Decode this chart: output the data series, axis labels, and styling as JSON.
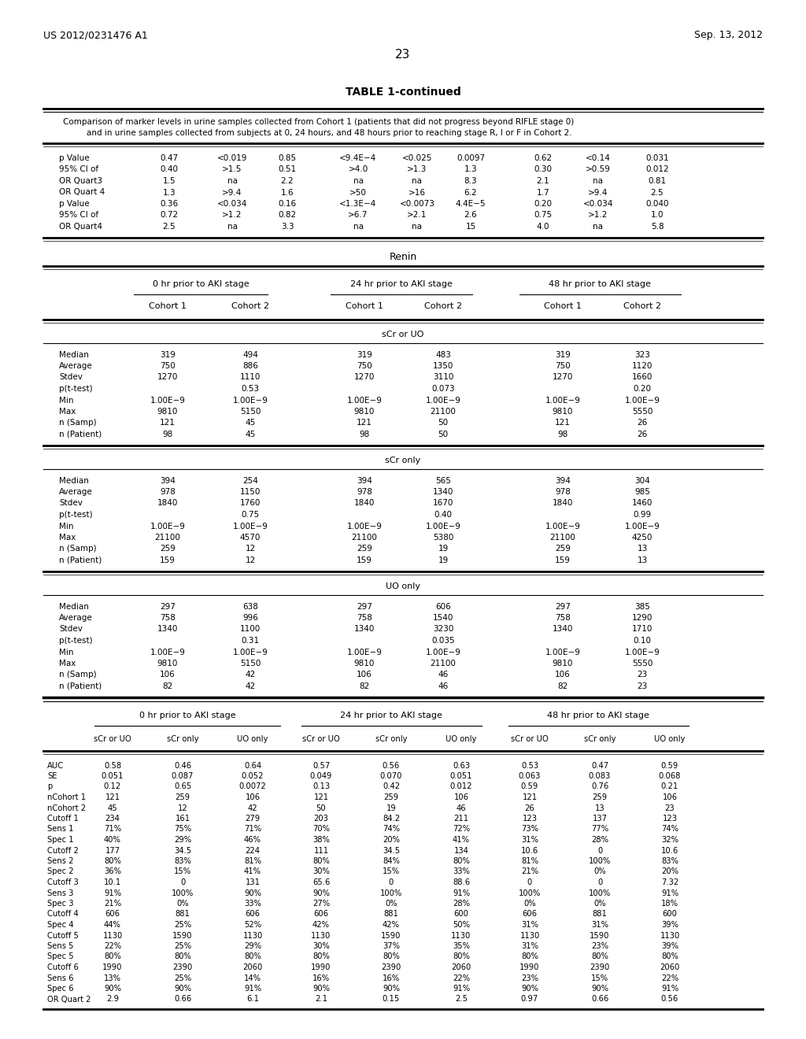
{
  "header_left": "US 2012/0231476 A1",
  "header_right": "Sep. 13, 2012",
  "page_num": "23",
  "table_title": "TABLE 1-continued",
  "caption_line1": "Comparison of marker levels in urine samples collected from Cohort 1 (patients that did not progress beyond RIFLE stage 0)",
  "caption_line2": "and in urine samples collected from subjects at 0, 24 hours, and 48 hours prior to reaching stage R, I or F in Cohort 2.",
  "top_rows": [
    [
      "p Value",
      "0.47",
      "<0.019",
      "0.85",
      "<9.4E−4",
      "<0.025",
      "0.0097",
      "0.62",
      "<0.14",
      "0.031"
    ],
    [
      "95% CI of",
      "0.40",
      ">1.5",
      "0.51",
      ">4.0",
      ">1.3",
      "1.3",
      "0.30",
      ">0.59",
      "0.012"
    ],
    [
      "OR Quart3",
      "1.5",
      "na",
      "2.2",
      "na",
      "na",
      "8.3",
      "2.1",
      "na",
      "0.81"
    ],
    [
      "OR Quart 4",
      "1.3",
      ">9.4",
      "1.6",
      ">50",
      ">16",
      "6.2",
      "1.7",
      ">9.4",
      "2.5"
    ],
    [
      "p Value",
      "0.36",
      "<0.034",
      "0.16",
      "<1.3E−4",
      "<0.0073",
      "4.4E−5",
      "0.20",
      "<0.034",
      "0.040"
    ],
    [
      "95% CI of",
      "0.72",
      ">1.2",
      "0.82",
      ">6.7",
      ">2.1",
      "2.6",
      "0.75",
      ">1.2",
      "1.0"
    ],
    [
      "OR Quart4",
      "2.5",
      "na",
      "3.3",
      "na",
      "na",
      "15",
      "4.0",
      "na",
      "5.8"
    ]
  ],
  "renin_section": "Renin",
  "group_headers": [
    "0 hr prior to AKI stage",
    "24 hr prior to AKI stage",
    "48 hr prior to AKI stage"
  ],
  "cohort_headers": [
    "Cohort 1",
    "Cohort 2",
    "Cohort 1",
    "Cohort 2",
    "Cohort 1",
    "Cohort 2"
  ],
  "scr_uo_section": "sCr or UO",
  "scr_uo_rows": [
    [
      "Median",
      "319",
      "494",
      "319",
      "483",
      "319",
      "323"
    ],
    [
      "Average",
      "750",
      "886",
      "750",
      "1350",
      "750",
      "1120"
    ],
    [
      "Stdev",
      "1270",
      "1110",
      "1270",
      "3110",
      "1270",
      "1660"
    ],
    [
      "p(t-test)",
      "",
      "0.53",
      "",
      "0.073",
      "",
      "0.20"
    ],
    [
      "Min",
      "1.00E−9",
      "1.00E−9",
      "1.00E−9",
      "1.00E−9",
      "1.00E−9",
      "1.00E−9"
    ],
    [
      "Max",
      "9810",
      "5150",
      "9810",
      "21100",
      "9810",
      "5550"
    ],
    [
      "n (Samp)",
      "121",
      "45",
      "121",
      "50",
      "121",
      "26"
    ],
    [
      "n (Patient)",
      "98",
      "45",
      "98",
      "50",
      "98",
      "26"
    ]
  ],
  "scr_only_section": "sCr only",
  "scr_only_rows": [
    [
      "Median",
      "394",
      "254",
      "394",
      "565",
      "394",
      "304"
    ],
    [
      "Average",
      "978",
      "1150",
      "978",
      "1340",
      "978",
      "985"
    ],
    [
      "Stdev",
      "1840",
      "1760",
      "1840",
      "1670",
      "1840",
      "1460"
    ],
    [
      "p(t-test)",
      "",
      "0.75",
      "",
      "0.40",
      "",
      "0.99"
    ],
    [
      "Min",
      "1.00E−9",
      "1.00E−9",
      "1.00E−9",
      "1.00E−9",
      "1.00E−9",
      "1.00E−9"
    ],
    [
      "Max",
      "21100",
      "4570",
      "21100",
      "5380",
      "21100",
      "4250"
    ],
    [
      "n (Samp)",
      "259",
      "12",
      "259",
      "19",
      "259",
      "13"
    ],
    [
      "n (Patient)",
      "159",
      "12",
      "159",
      "19",
      "159",
      "13"
    ]
  ],
  "uo_only_section": "UO only",
  "uo_only_rows": [
    [
      "Median",
      "297",
      "638",
      "297",
      "606",
      "297",
      "385"
    ],
    [
      "Average",
      "758",
      "996",
      "758",
      "1540",
      "758",
      "1290"
    ],
    [
      "Stdev",
      "1340",
      "1100",
      "1340",
      "3230",
      "1340",
      "1710"
    ],
    [
      "p(t-test)",
      "",
      "0.31",
      "",
      "0.035",
      "",
      "0.10"
    ],
    [
      "Min",
      "1.00E−9",
      "1.00E−9",
      "1.00E−9",
      "1.00E−9",
      "1.00E−9",
      "1.00E−9"
    ],
    [
      "Max",
      "9810",
      "5150",
      "9810",
      "21100",
      "9810",
      "5550"
    ],
    [
      "n (Samp)",
      "106",
      "42",
      "106",
      "46",
      "106",
      "23"
    ],
    [
      "n (Patient)",
      "82",
      "42",
      "82",
      "46",
      "82",
      "23"
    ]
  ],
  "bottom_group_headers": [
    "0 hr prior to AKI stage",
    "24 hr prior to AKI stage",
    "48 hr prior to AKI stage"
  ],
  "bottom_subheaders": [
    "sCr or UO",
    "sCr only",
    "UO only",
    "sCr or UO",
    "sCr only",
    "UO only",
    "sCr or UO",
    "sCr only",
    "UO only"
  ],
  "bottom_rows": [
    [
      "AUC",
      "0.58",
      "0.46",
      "0.64",
      "0.57",
      "0.56",
      "0.63",
      "0.53",
      "0.47",
      "0.59"
    ],
    [
      "SE",
      "0.051",
      "0.087",
      "0.052",
      "0.049",
      "0.070",
      "0.051",
      "0.063",
      "0.083",
      "0.068"
    ],
    [
      "p",
      "0.12",
      "0.65",
      "0.0072",
      "0.13",
      "0.42",
      "0.012",
      "0.59",
      "0.76",
      "0.21"
    ],
    [
      "nCohort 1",
      "121",
      "259",
      "106",
      "121",
      "259",
      "106",
      "121",
      "259",
      "106"
    ],
    [
      "nCohort 2",
      "45",
      "12",
      "42",
      "50",
      "19",
      "46",
      "26",
      "13",
      "23"
    ],
    [
      "Cutoff 1",
      "234",
      "161",
      "279",
      "203",
      "84.2",
      "211",
      "123",
      "137",
      "123"
    ],
    [
      "Sens 1",
      "71%",
      "75%",
      "71%",
      "70%",
      "74%",
      "72%",
      "73%",
      "77%",
      "74%"
    ],
    [
      "Spec 1",
      "40%",
      "29%",
      "46%",
      "38%",
      "20%",
      "41%",
      "31%",
      "28%",
      "32%"
    ],
    [
      "Cutoff 2",
      "177",
      "34.5",
      "224",
      "111",
      "34.5",
      "134",
      "10.6",
      "0",
      "10.6"
    ],
    [
      "Sens 2",
      "80%",
      "83%",
      "81%",
      "80%",
      "84%",
      "80%",
      "81%",
      "100%",
      "83%"
    ],
    [
      "Spec 2",
      "36%",
      "15%",
      "41%",
      "30%",
      "15%",
      "33%",
      "21%",
      "0%",
      "20%"
    ],
    [
      "Cutoff 3",
      "10.1",
      "0",
      "131",
      "65.6",
      "0",
      "88.6",
      "0",
      "0",
      "7.32"
    ],
    [
      "Sens 3",
      "91%",
      "100%",
      "90%",
      "90%",
      "100%",
      "91%",
      "100%",
      "100%",
      "91%"
    ],
    [
      "Spec 3",
      "21%",
      "0%",
      "33%",
      "27%",
      "0%",
      "28%",
      "0%",
      "0%",
      "18%"
    ],
    [
      "Cutoff 4",
      "606",
      "881",
      "606",
      "606",
      "881",
      "600",
      "606",
      "881",
      "600"
    ],
    [
      "Spec 4",
      "44%",
      "25%",
      "52%",
      "42%",
      "42%",
      "50%",
      "31%",
      "31%",
      "39%"
    ],
    [
      "Cutoff 5",
      "1130",
      "1590",
      "1130",
      "1130",
      "1590",
      "1130",
      "1130",
      "1590",
      "1130"
    ],
    [
      "Sens 5",
      "22%",
      "25%",
      "29%",
      "30%",
      "37%",
      "35%",
      "31%",
      "23%",
      "39%"
    ],
    [
      "Spec 5",
      "80%",
      "80%",
      "80%",
      "80%",
      "80%",
      "80%",
      "80%",
      "80%",
      "80%"
    ],
    [
      "Cutoff 6",
      "1990",
      "2390",
      "2060",
      "1990",
      "2390",
      "2060",
      "1990",
      "2390",
      "2060"
    ],
    [
      "Sens 6",
      "13%",
      "25%",
      "14%",
      "16%",
      "16%",
      "22%",
      "23%",
      "15%",
      "22%"
    ],
    [
      "Spec 6",
      "90%",
      "90%",
      "91%",
      "90%",
      "90%",
      "91%",
      "90%",
      "90%",
      "91%"
    ],
    [
      "OR Quart 2",
      "2.9",
      "0.66",
      "6.1",
      "2.1",
      "0.15",
      "2.5",
      "0.97",
      "0.66",
      "0.56"
    ]
  ]
}
